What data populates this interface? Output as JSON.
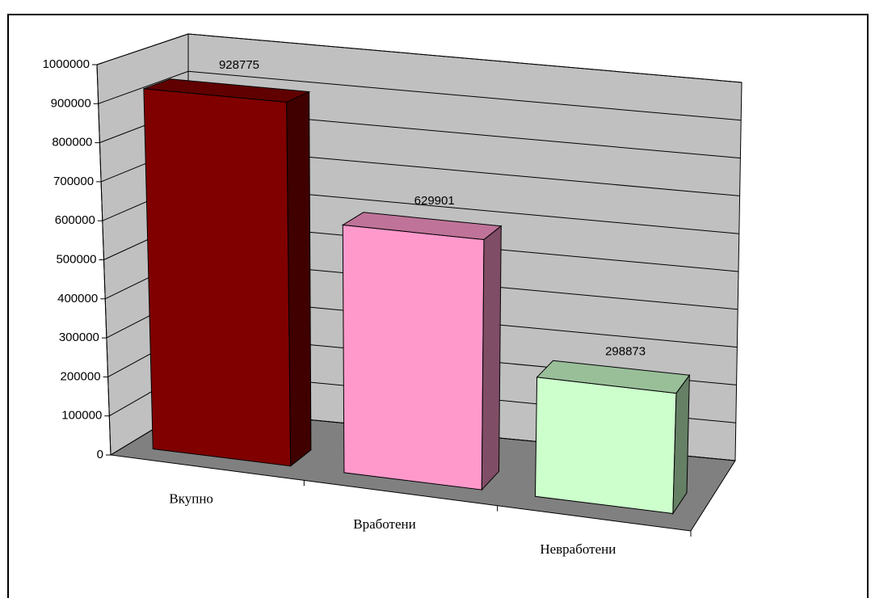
{
  "chart_data": {
    "type": "bar3d",
    "categories": [
      "Вкупно",
      "Вработени",
      "Невработени"
    ],
    "values": [
      928775,
      629901,
      298873
    ],
    "colors": [
      "#800000",
      "#ff99cc",
      "#ccffcc"
    ],
    "ylim": [
      0,
      1000000
    ],
    "yticks": [
      0,
      100000,
      200000,
      300000,
      400000,
      500000,
      600000,
      700000,
      800000,
      900000,
      1000000
    ],
    "grid": true
  }
}
